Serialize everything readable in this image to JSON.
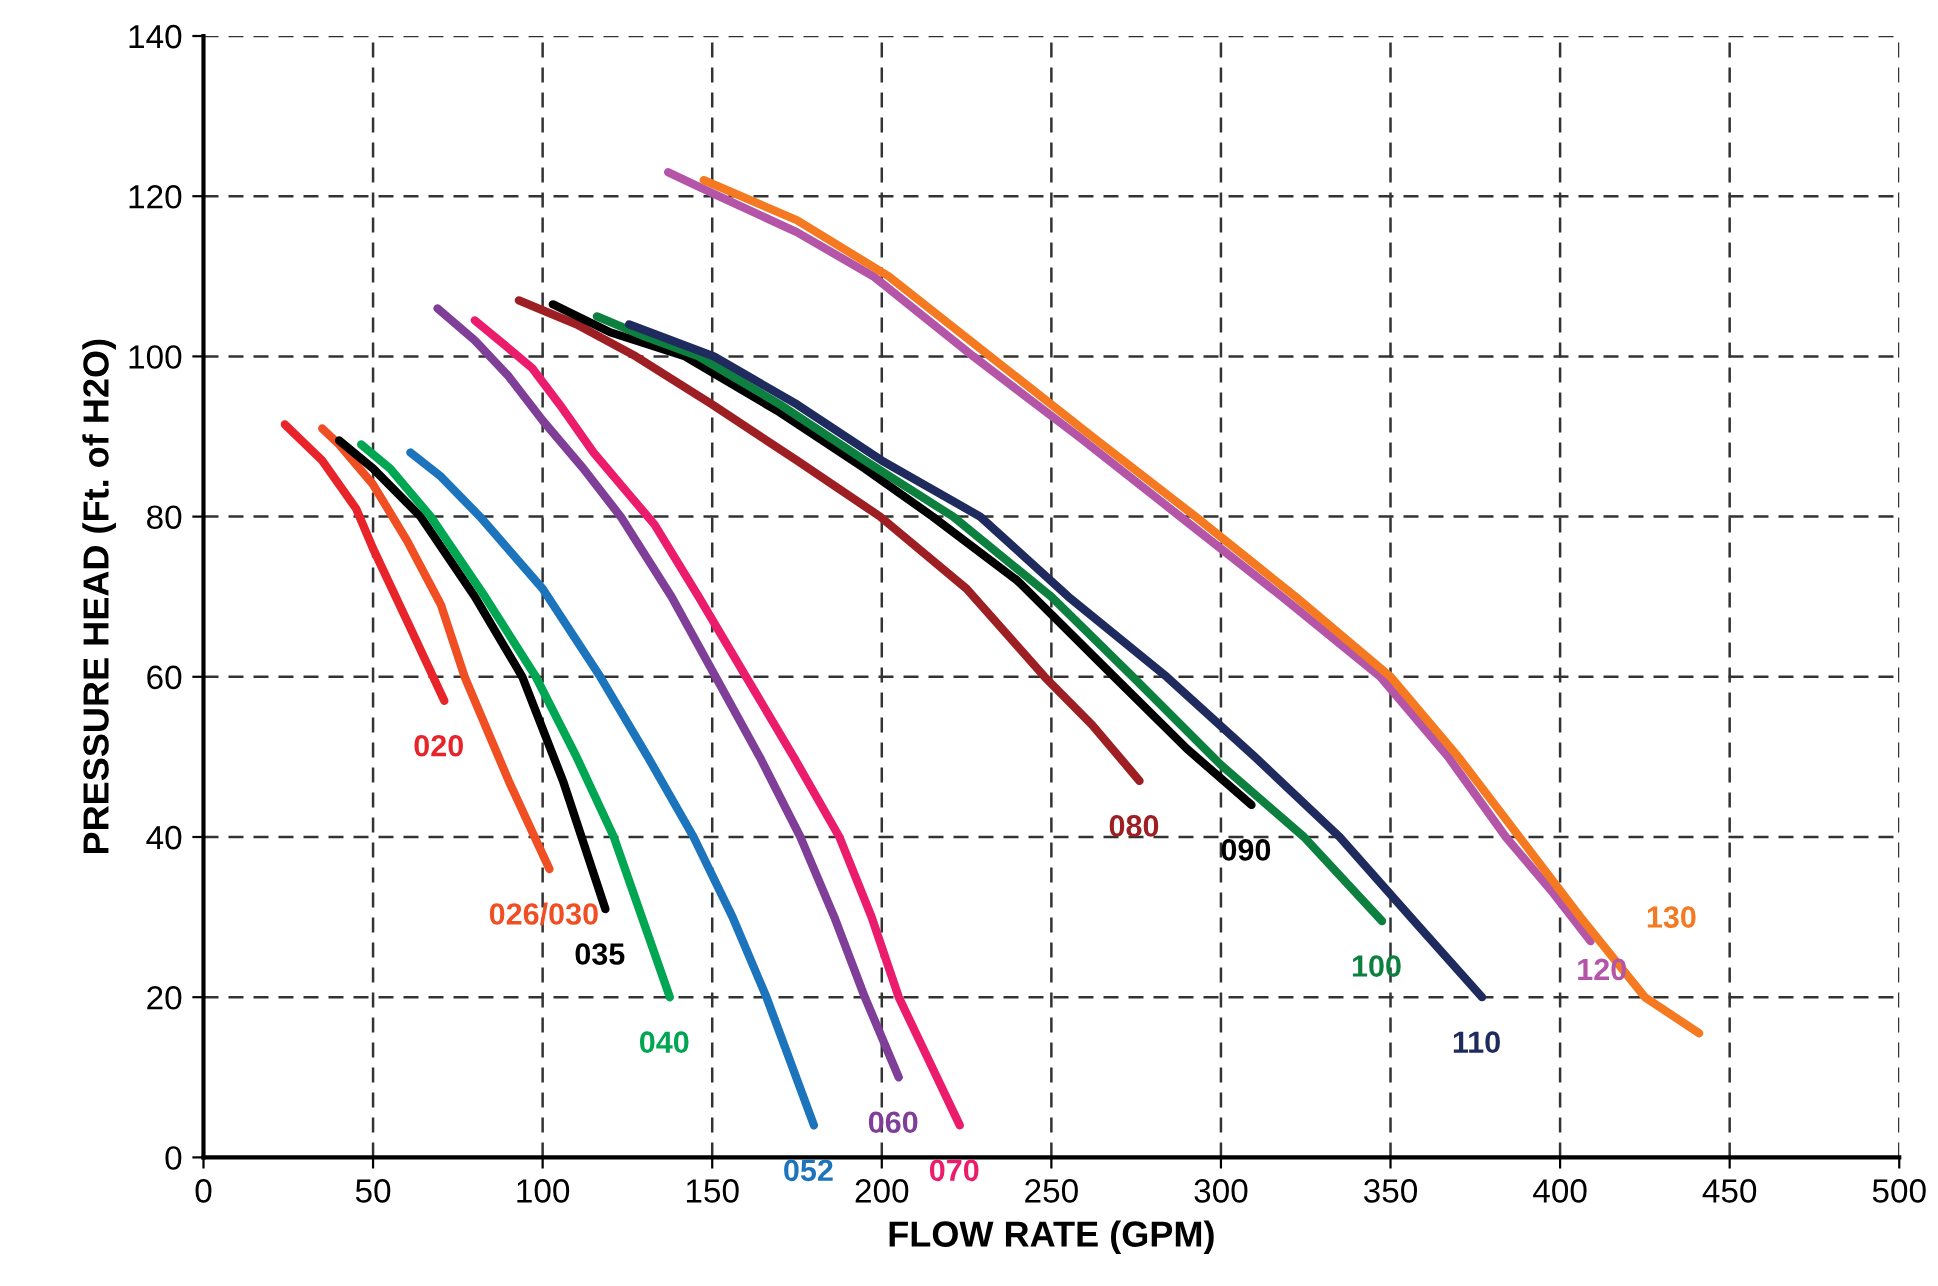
{
  "chart_data": {
    "type": "line",
    "xlabel": "FLOW RATE (GPM)",
    "ylabel": "PRESSURE HEAD (Ft. of H2O)",
    "xlim": [
      0,
      500
    ],
    "xticks": [
      0,
      50,
      100,
      150,
      200,
      250,
      300,
      350,
      400,
      450,
      500
    ],
    "ylim": [
      0,
      140
    ],
    "yticks": [
      0,
      20,
      40,
      60,
      80,
      100,
      120,
      140
    ],
    "grid": true,
    "marker": "none",
    "line_style": "solid",
    "series": [
      {
        "name": "020",
        "color": "#e8232a",
        "x": [
          24,
          35,
          45,
          50,
          60,
          71
        ],
        "values": [
          91.5,
          87,
          81,
          76,
          67,
          57
        ]
      },
      {
        "name": "026/030",
        "color": "#f04e23",
        "x": [
          35,
          40,
          50,
          60,
          70,
          77,
          90,
          102
        ],
        "values": [
          91,
          89,
          84,
          77,
          69,
          60,
          47,
          36
        ]
      },
      {
        "name": "035",
        "color": "#000000",
        "x": [
          40,
          50,
          64,
          80,
          94,
          106,
          118.5
        ],
        "values": [
          89.5,
          86,
          80,
          70,
          60,
          47,
          31
        ]
      },
      {
        "name": "040",
        "color": "#00a651",
        "x": [
          46.5,
          55,
          67,
          83,
          98,
          110,
          121,
          137.5
        ],
        "values": [
          89,
          86,
          80,
          70,
          60,
          50,
          40,
          20
        ]
      },
      {
        "name": "052",
        "color": "#1c75bc",
        "x": [
          61,
          70,
          81.5,
          100,
          117,
          131,
          144.5,
          156,
          166,
          180
        ],
        "values": [
          88,
          85,
          80,
          71,
          60,
          50,
          40,
          30,
          20,
          4
        ]
      },
      {
        "name": "060",
        "color": "#7f3f98",
        "x": [
          69,
          80,
          90,
          100,
          112,
          123,
          138,
          151,
          164,
          176,
          186,
          195,
          205
        ],
        "values": [
          106,
          102,
          97.5,
          92,
          86,
          80,
          70,
          60,
          50,
          40,
          30,
          20,
          10
        ]
      },
      {
        "name": "070",
        "color": "#ec1c6c",
        "x": [
          80,
          90,
          97,
          105,
          115,
          125,
          133,
          146,
          160,
          174,
          187.5,
          197,
          205,
          214,
          223
        ],
        "values": [
          104.5,
          101,
          98.5,
          94,
          88,
          83,
          79,
          70,
          60,
          50,
          40,
          30,
          20,
          12,
          4
        ]
      },
      {
        "name": "080",
        "color": "#9e1f23",
        "x": [
          93,
          110,
          127.5,
          150,
          175,
          199.5,
          225,
          248,
          262,
          276
        ],
        "values": [
          107,
          104,
          100,
          94,
          87,
          80,
          71,
          60,
          54,
          47
        ]
      },
      {
        "name": "090",
        "color": "#000000",
        "x": [
          103,
          120,
          142,
          170,
          195,
          215,
          240,
          268.5,
          290,
          309
        ],
        "values": [
          106.5,
          103,
          100,
          93,
          86,
          80,
          72,
          60,
          51,
          44
        ]
      },
      {
        "name": "100",
        "color": "#0d8040",
        "x": [
          116,
          130,
          146,
          170,
          195,
          221,
          250,
          274,
          300,
          324.5,
          347.5
        ],
        "values": [
          105,
          102.5,
          100,
          94,
          87,
          80,
          70,
          60,
          49,
          40,
          29.5
        ]
      },
      {
        "name": "110",
        "color": "#1f2a5f",
        "x": [
          125.5,
          150.5,
          175,
          200,
          229,
          255,
          284,
          310,
          335,
          358,
          377
        ],
        "values": [
          104,
          100,
          94,
          87,
          80,
          70,
          60,
          50,
          40,
          29,
          20
        ]
      },
      {
        "name": "120",
        "color": "#b455a8",
        "x": [
          137,
          152,
          175,
          197.5,
          227,
          258,
          288,
          318,
          347,
          367,
          384,
          398,
          409
        ],
        "values": [
          123,
          120,
          115.5,
          110,
          100,
          90,
          80,
          70,
          60,
          50,
          40,
          33,
          27
        ]
      },
      {
        "name": "130",
        "color": "#f47920",
        "x": [
          147.5,
          175,
          202,
          232,
          262,
          292.5,
          322,
          350,
          370,
          388,
          406,
          425,
          441
        ],
        "values": [
          122,
          117,
          110,
          100,
          90,
          80,
          70,
          60,
          50,
          40,
          30,
          20,
          15.5
        ]
      }
    ]
  }
}
